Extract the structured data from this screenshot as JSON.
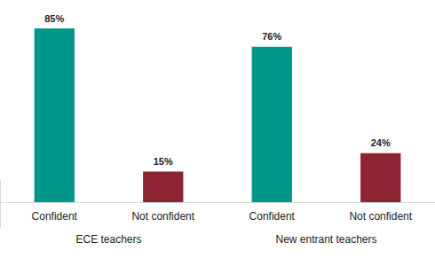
{
  "chart_data": {
    "type": "bar",
    "categories": [
      "Confident",
      "Not confident",
      "Confident",
      "Not confident"
    ],
    "group_labels": [
      "ECE teachers",
      "New entrant teachers"
    ],
    "values": [
      85,
      15,
      76,
      24
    ],
    "value_labels": [
      "85%",
      "15%",
      "76%",
      "24%"
    ],
    "colors": [
      "#00968a",
      "#8c2434",
      "#00968a",
      "#8c2434"
    ],
    "data_labels": true,
    "tick_labels": "x",
    "grid": false
  }
}
